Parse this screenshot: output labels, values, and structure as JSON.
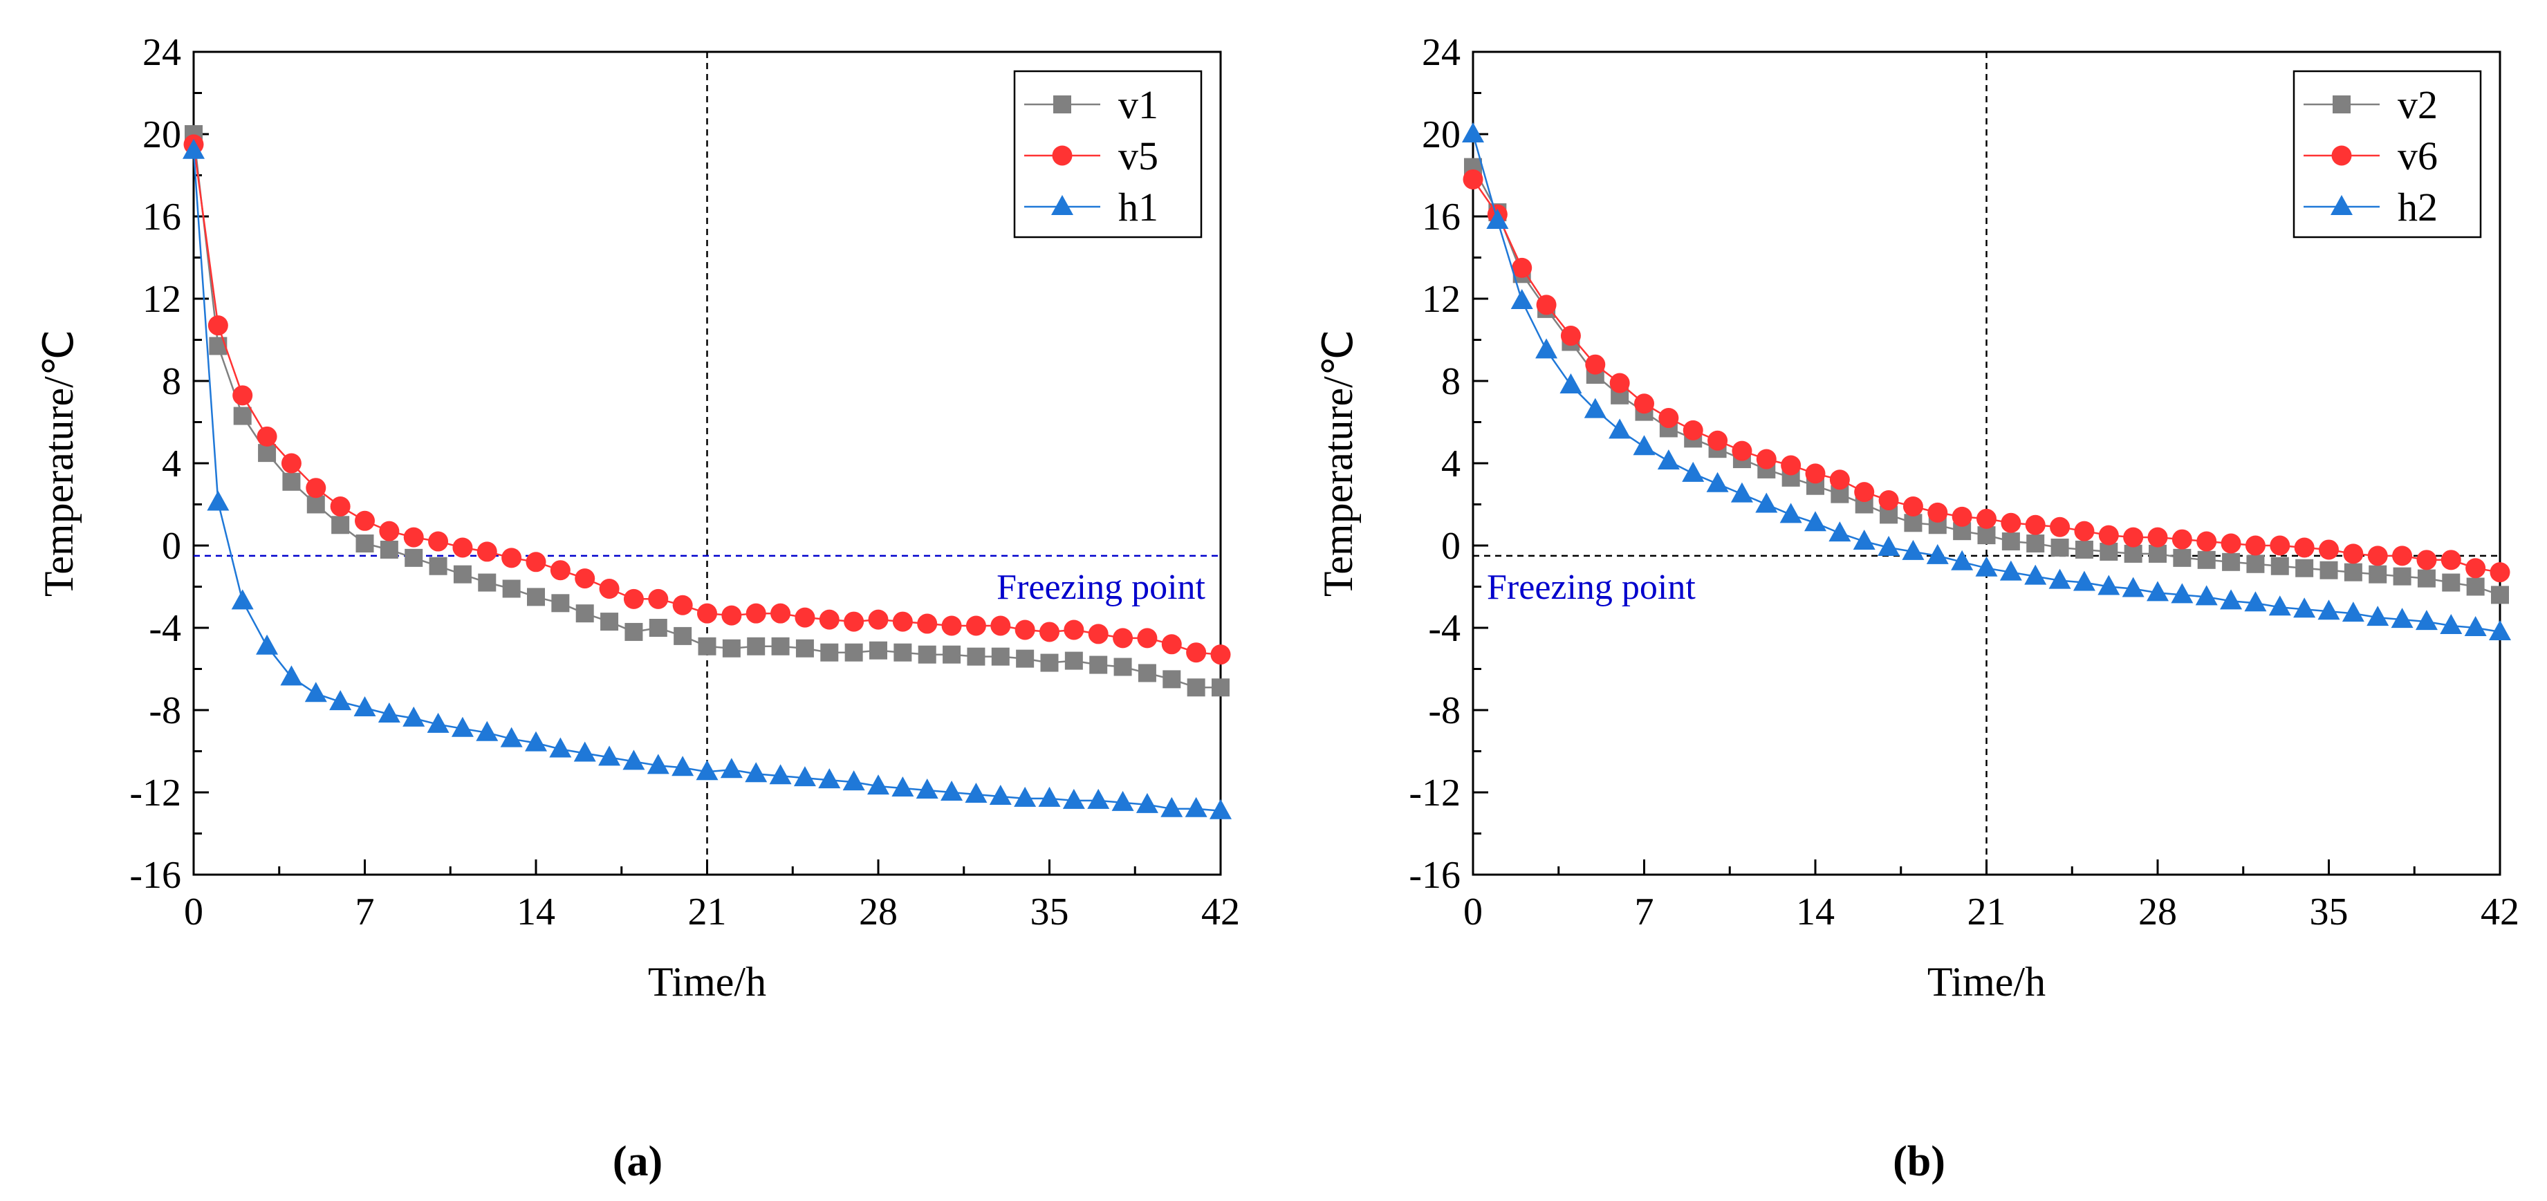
{
  "chart_data": [
    {
      "type": "line",
      "panel_label": "(a)",
      "xlabel": "Time/h",
      "ylabel": "Temperature/℃",
      "xlim": [
        0,
        42
      ],
      "ylim": [
        -16,
        24
      ],
      "x_ticks": [
        "0",
        "7",
        "14",
        "21",
        "28",
        "35",
        "42"
      ],
      "y_ticks": [
        "-16",
        "-12",
        "-8",
        "-4",
        "0",
        "4",
        "8",
        "12",
        "16",
        "20",
        "24"
      ],
      "grid": false,
      "legend_position": "top-right",
      "vertical_line": {
        "x": 21,
        "style": "dashed",
        "color": "#000000"
      },
      "freezing_line": {
        "y": -0.5,
        "style": "dashed",
        "color": "#0000cc",
        "label": "Freezing point",
        "label_color": "#0000cc"
      },
      "x": [
        0,
        1,
        2,
        3,
        4,
        5,
        6,
        7,
        8,
        9,
        10,
        11,
        12,
        13,
        14,
        15,
        16,
        17,
        18,
        19,
        20,
        21,
        22,
        23,
        24,
        25,
        26,
        27,
        28,
        29,
        30,
        31,
        32,
        33,
        34,
        35,
        36,
        37,
        38,
        39,
        40,
        41,
        42
      ],
      "series": [
        {
          "name": "v1",
          "color": "#808080",
          "marker": "square",
          "values": [
            20,
            9.7,
            6.3,
            4.5,
            3.1,
            2.0,
            1.0,
            0.1,
            -0.2,
            -0.6,
            -1.0,
            -1.4,
            -1.8,
            -2.1,
            -2.5,
            -2.8,
            -3.3,
            -3.7,
            -4.2,
            -4.0,
            -4.4,
            -4.9,
            -5.0,
            -4.9,
            -4.9,
            -5.0,
            -5.2,
            -5.2,
            -5.1,
            -5.2,
            -5.3,
            -5.3,
            -5.4,
            -5.4,
            -5.5,
            -5.7,
            -5.6,
            -5.8,
            -5.9,
            -6.2,
            -6.5,
            -6.9,
            -6.9
          ]
        },
        {
          "name": "v5",
          "color": "#ff3333",
          "marker": "circle",
          "values": [
            19.5,
            10.7,
            7.3,
            5.3,
            4.0,
            2.8,
            1.9,
            1.2,
            0.7,
            0.4,
            0.2,
            -0.1,
            -0.3,
            -0.6,
            -0.8,
            -1.2,
            -1.6,
            -2.1,
            -2.6,
            -2.6,
            -2.9,
            -3.3,
            -3.4,
            -3.3,
            -3.3,
            -3.5,
            -3.6,
            -3.7,
            -3.6,
            -3.7,
            -3.8,
            -3.9,
            -3.9,
            -3.9,
            -4.1,
            -4.2,
            -4.1,
            -4.3,
            -4.5,
            -4.5,
            -4.8,
            -5.2,
            -5.3
          ]
        },
        {
          "name": "h1",
          "color": "#1f78d8",
          "marker": "triangle",
          "values": [
            19.2,
            2.1,
            -2.7,
            -4.9,
            -6.4,
            -7.2,
            -7.6,
            -7.9,
            -8.2,
            -8.4,
            -8.7,
            -8.9,
            -9.1,
            -9.4,
            -9.6,
            -9.9,
            -10.1,
            -10.3,
            -10.5,
            -10.7,
            -10.8,
            -11.0,
            -10.9,
            -11.1,
            -11.2,
            -11.3,
            -11.4,
            -11.5,
            -11.7,
            -11.8,
            -11.9,
            -12.0,
            -12.1,
            -12.2,
            -12.3,
            -12.3,
            -12.4,
            -12.4,
            -12.5,
            -12.6,
            -12.8,
            -12.8,
            -12.9
          ]
        }
      ]
    },
    {
      "type": "line",
      "panel_label": "(b)",
      "xlabel": "Time/h",
      "ylabel": "Temperature/℃",
      "xlim": [
        0,
        42
      ],
      "ylim": [
        -16,
        24
      ],
      "x_ticks": [
        "0",
        "7",
        "14",
        "21",
        "28",
        "35",
        "42"
      ],
      "y_ticks": [
        "-16",
        "-12",
        "-8",
        "-4",
        "0",
        "4",
        "8",
        "12",
        "16",
        "20",
        "24"
      ],
      "grid": false,
      "legend_position": "top-right",
      "vertical_line": {
        "x": 21,
        "style": "dashed",
        "color": "#000000"
      },
      "freezing_line": {
        "y": -0.5,
        "style": "dashed",
        "color": "#000000",
        "label": "Freezing point",
        "label_color": "#0000cc"
      },
      "x": [
        0,
        1,
        2,
        3,
        4,
        5,
        6,
        7,
        8,
        9,
        10,
        11,
        12,
        13,
        14,
        15,
        16,
        17,
        18,
        19,
        20,
        21,
        22,
        23,
        24,
        25,
        26,
        27,
        28,
        29,
        30,
        31,
        32,
        33,
        34,
        35,
        36,
        37,
        38,
        39,
        40,
        41,
        42
      ],
      "series": [
        {
          "name": "v2",
          "color": "#808080",
          "marker": "square",
          "values": [
            18.4,
            16.2,
            13.2,
            11.5,
            9.9,
            8.3,
            7.3,
            6.5,
            5.7,
            5.2,
            4.7,
            4.2,
            3.7,
            3.3,
            2.9,
            2.5,
            2.0,
            1.5,
            1.1,
            1.0,
            0.7,
            0.5,
            0.2,
            0.1,
            -0.1,
            -0.2,
            -0.3,
            -0.4,
            -0.4,
            -0.6,
            -0.7,
            -0.8,
            -0.9,
            -1.0,
            -1.1,
            -1.2,
            -1.3,
            -1.4,
            -1.5,
            -1.6,
            -1.8,
            -2.0,
            -2.4
          ]
        },
        {
          "name": "v6",
          "color": "#ff3333",
          "marker": "circle",
          "values": [
            17.8,
            16.1,
            13.5,
            11.7,
            10.2,
            8.8,
            7.9,
            6.9,
            6.2,
            5.6,
            5.1,
            4.6,
            4.2,
            3.9,
            3.5,
            3.2,
            2.6,
            2.2,
            1.9,
            1.6,
            1.4,
            1.3,
            1.1,
            1.0,
            0.9,
            0.7,
            0.5,
            0.4,
            0.4,
            0.3,
            0.2,
            0.1,
            0.0,
            0.0,
            -0.1,
            -0.2,
            -0.4,
            -0.5,
            -0.5,
            -0.7,
            -0.7,
            -1.1,
            -1.3
          ]
        },
        {
          "name": "h2",
          "color": "#1f78d8",
          "marker": "triangle",
          "values": [
            20.0,
            15.8,
            11.9,
            9.5,
            7.8,
            6.6,
            5.6,
            4.8,
            4.1,
            3.5,
            3.0,
            2.5,
            2.0,
            1.5,
            1.1,
            0.6,
            0.2,
            -0.1,
            -0.3,
            -0.5,
            -0.8,
            -1.1,
            -1.3,
            -1.5,
            -1.7,
            -1.8,
            -2.0,
            -2.1,
            -2.3,
            -2.4,
            -2.5,
            -2.7,
            -2.8,
            -3.0,
            -3.1,
            -3.2,
            -3.3,
            -3.5,
            -3.6,
            -3.7,
            -3.9,
            -4.0,
            -4.2
          ]
        }
      ]
    }
  ]
}
